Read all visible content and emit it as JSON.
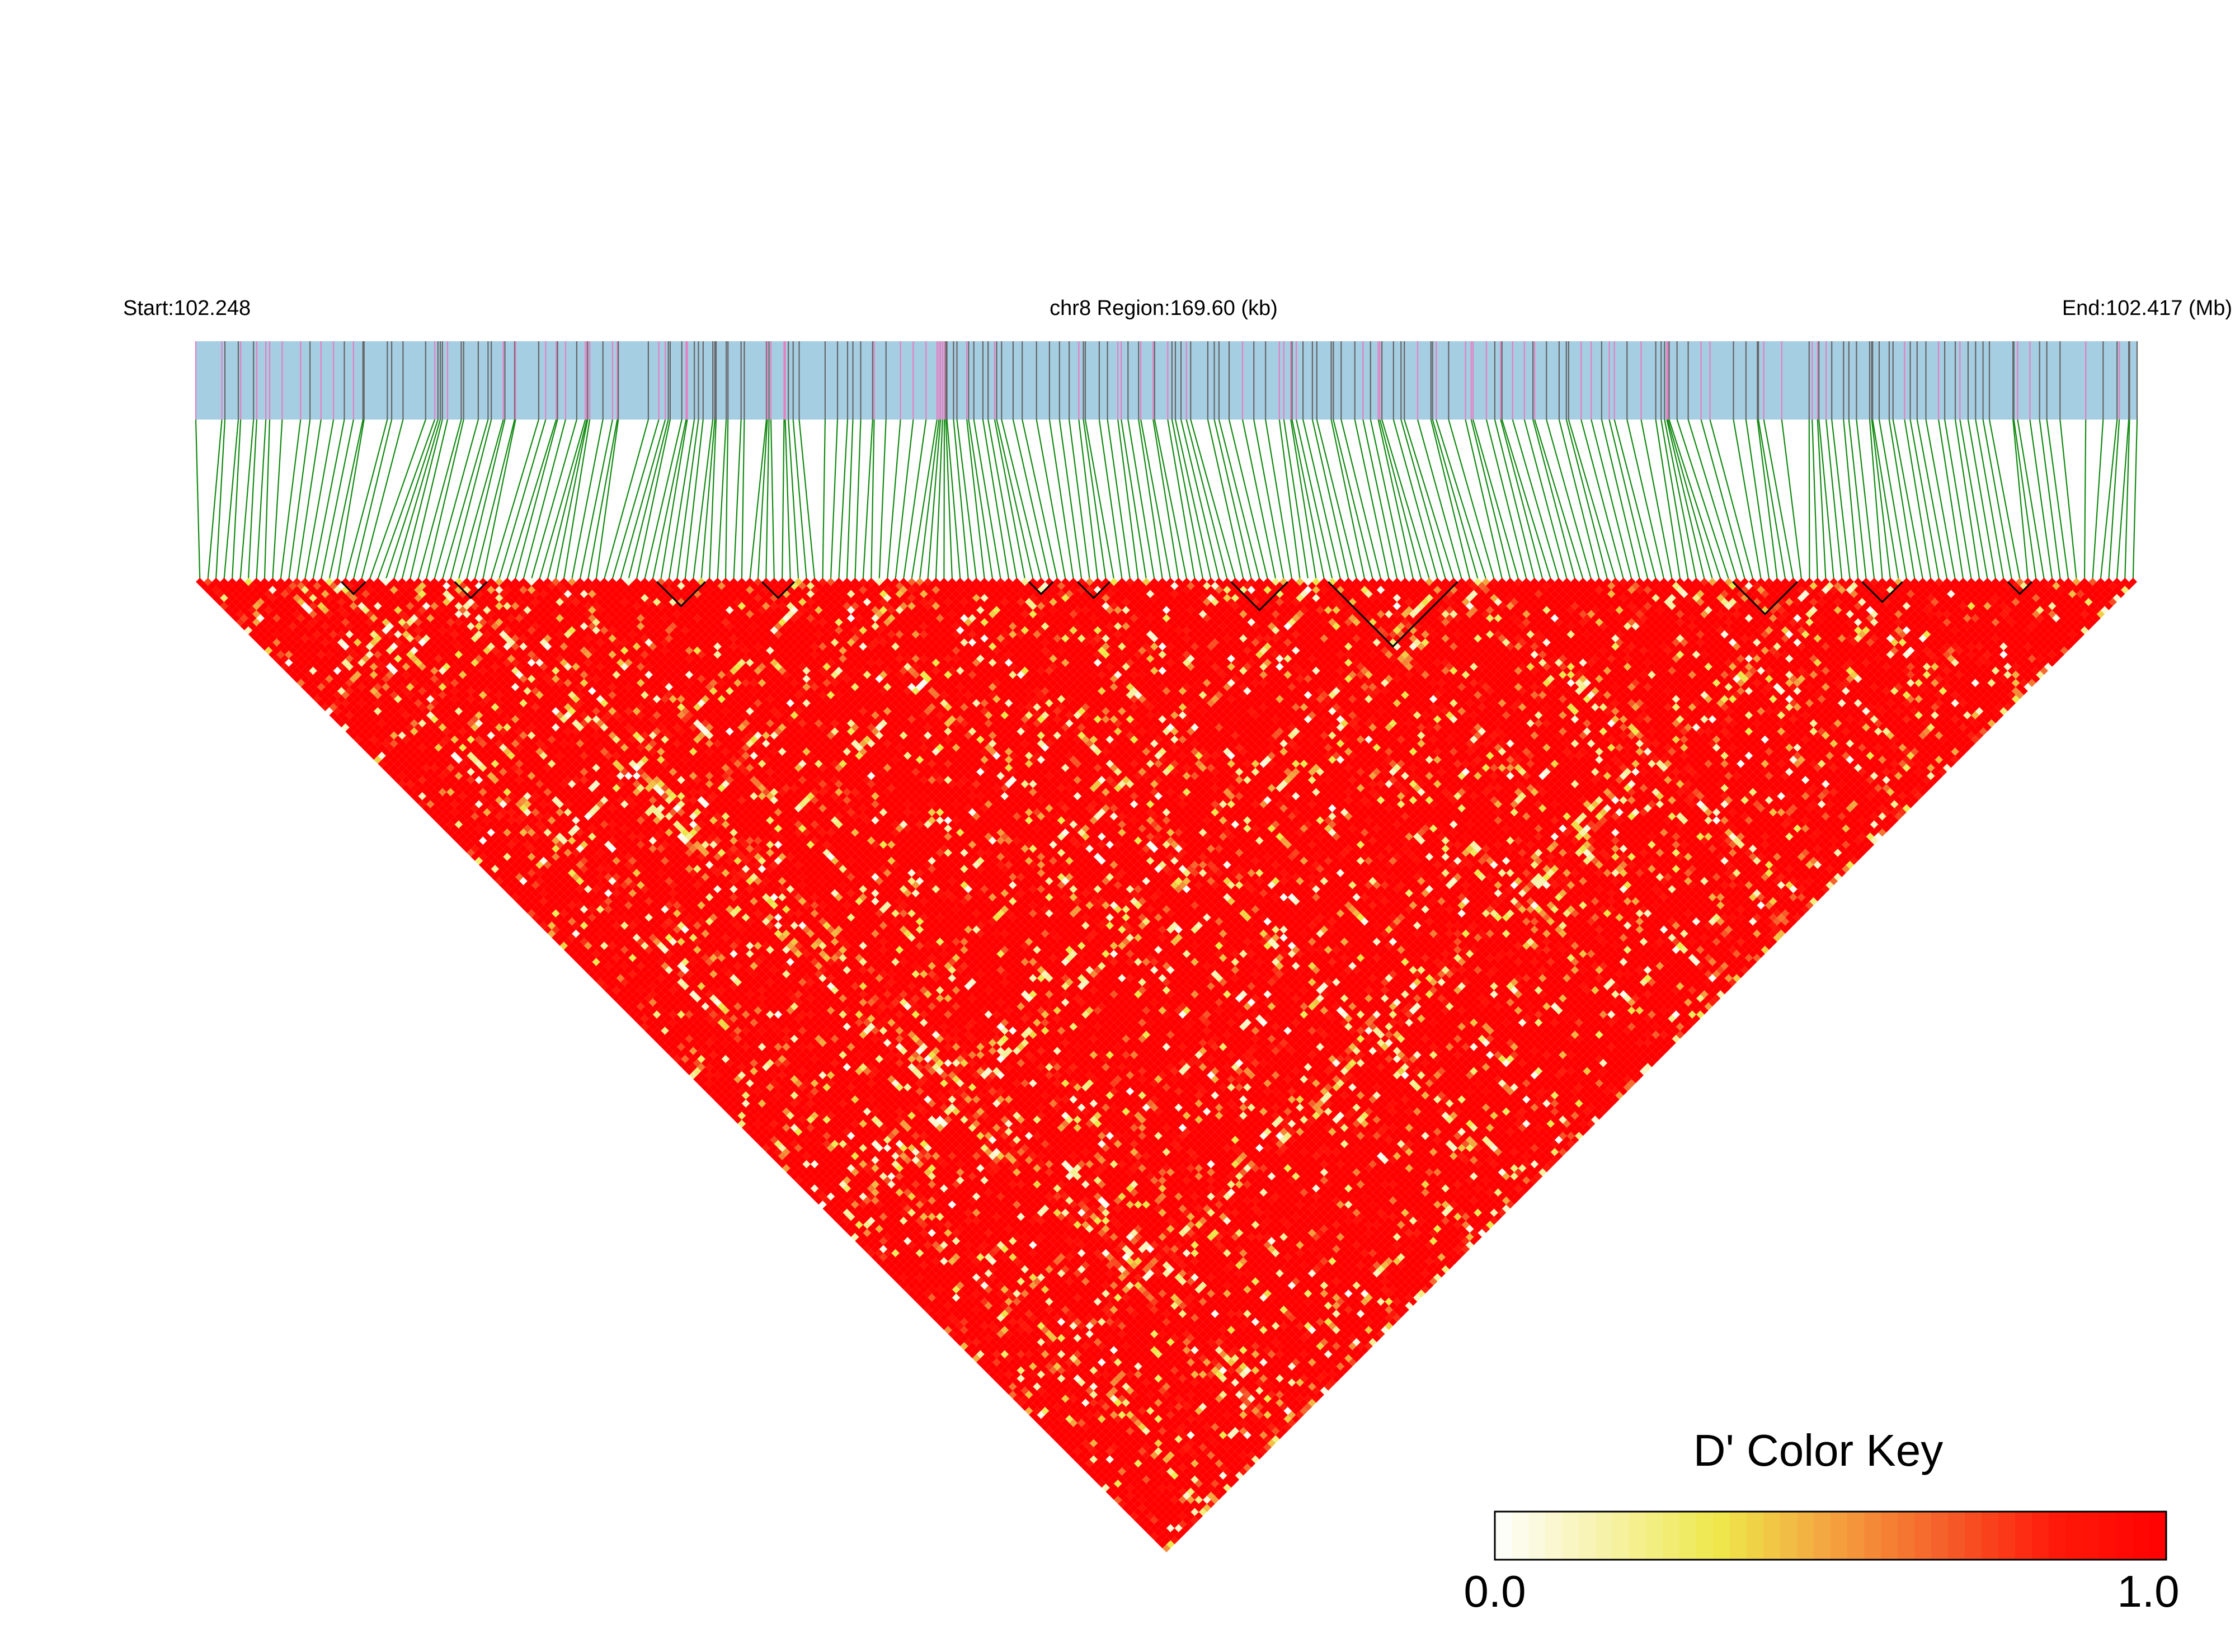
{
  "header": {
    "start_label": "Start:102.248",
    "region_label": "chr8 Region:169.60 (kb)",
    "end_label": "End:102.417 (Mb)"
  },
  "chart_data": {
    "type": "heatmap",
    "chromosome": "chr8",
    "start_mb": 102.248,
    "end_mb": 102.417,
    "region_kb": 169.6,
    "n_snps": 240,
    "measure": "D'",
    "color_key": {
      "title": "D' Color Key",
      "min_label": "0.0",
      "max_label": "1.0",
      "range": [
        0,
        1
      ],
      "colors": [
        "#ffffff",
        "#f7f2a8",
        "#eee84a",
        "#f4a340",
        "#f5602a",
        "#ff1a0a",
        "#ff0000"
      ]
    },
    "colors": {
      "track": "#a6cee3",
      "snp_line_gray": "#666666",
      "snp_line_pink": "#e57fc1",
      "connector": "#118a11",
      "high_ld": "#ff0000",
      "block_outline": "#000000"
    },
    "ld_blocks": [
      {
        "from": 18,
        "to": 20
      },
      {
        "from": 32,
        "to": 35
      },
      {
        "from": 57,
        "to": 62
      },
      {
        "from": 70,
        "to": 73
      },
      {
        "from": 103,
        "to": 105
      },
      {
        "from": 109,
        "to": 112
      },
      {
        "from": 128,
        "to": 134
      },
      {
        "from": 140,
        "to": 155
      },
      {
        "from": 190,
        "to": 197
      },
      {
        "from": 206,
        "to": 210
      },
      {
        "from": 224,
        "to": 226
      }
    ]
  }
}
